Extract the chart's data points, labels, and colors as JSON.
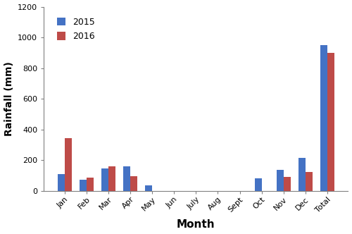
{
  "categories": [
    "Jan",
    "Feb",
    "Mar",
    "Apr",
    "May",
    "Jun",
    "July",
    "Aug",
    "Sept",
    "Oct",
    "Nov",
    "Dec",
    "Total"
  ],
  "values_2015": [
    110,
    70,
    145,
    158,
    35,
    0,
    0,
    0,
    0,
    80,
    135,
    213,
    950
  ],
  "values_2016": [
    345,
    88,
    160,
    93,
    0,
    0,
    0,
    0,
    0,
    0,
    92,
    125,
    900
  ],
  "color_2015": "#4472C4",
  "color_2016": "#BE4B48",
  "ylabel": "Rainfall (mm)",
  "xlabel": "Month",
  "legend_2015": "2015",
  "legend_2016": "2016",
  "ylim": [
    0,
    1200
  ],
  "yticks": [
    0,
    200,
    400,
    600,
    800,
    1000,
    1200
  ],
  "bar_width": 0.32,
  "figsize": [
    5.0,
    3.32
  ],
  "dpi": 100,
  "bg_color": "#FFFFFF"
}
